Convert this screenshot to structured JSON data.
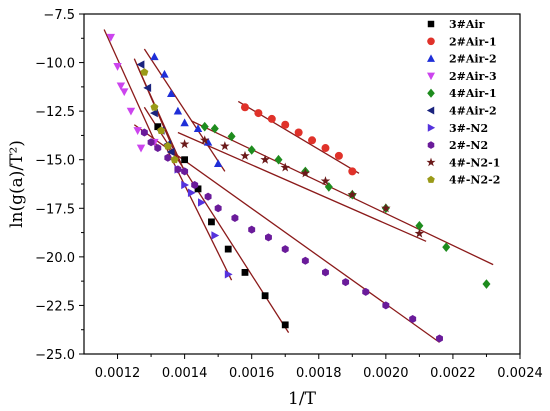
{
  "chart_data": {
    "type": "scatter",
    "title": "",
    "xlabel": "1/T",
    "ylabel": "ln(g(a)/T²)",
    "xlim": [
      0.0011,
      0.0024
    ],
    "ylim": [
      -25.0,
      -7.5
    ],
    "x_ticks": [
      {
        "value": 0.0012,
        "label": "0.0012"
      },
      {
        "value": 0.0014,
        "label": "0.0014"
      },
      {
        "value": 0.0016,
        "label": "0.0016"
      },
      {
        "value": 0.0018,
        "label": "0.0018"
      },
      {
        "value": 0.002,
        "label": "0.0020"
      },
      {
        "value": 0.0022,
        "label": "0.0022"
      },
      {
        "value": 0.0024,
        "label": "0.0024"
      }
    ],
    "y_ticks": [
      {
        "value": -7.5,
        "label": "−7.5"
      },
      {
        "value": -10.0,
        "label": "−10.0"
      },
      {
        "value": -12.5,
        "label": "−12.5"
      },
      {
        "value": -15.0,
        "label": "−15.0"
      },
      {
        "value": -17.5,
        "label": "−17.5"
      },
      {
        "value": -20.0,
        "label": "−20.0"
      },
      {
        "value": -22.5,
        "label": "−22.5"
      },
      {
        "value": -25.0,
        "label": "−25.0"
      }
    ],
    "grid": false,
    "legend_position": "top-right",
    "fit_line_color": "#8b1a1a",
    "series": [
      {
        "name": "3#Air",
        "marker": "square",
        "color": "#000000",
        "points": [
          [
            0.00132,
            -13.3
          ],
          [
            0.0014,
            -15.0
          ],
          [
            0.00144,
            -16.5
          ],
          [
            0.00148,
            -18.2
          ],
          [
            0.00153,
            -19.6
          ],
          [
            0.00158,
            -20.8
          ],
          [
            0.00164,
            -22.0
          ],
          [
            0.0017,
            -23.5
          ]
        ]
      },
      {
        "name": "2#Air-1",
        "marker": "circle",
        "color": "#e0322a",
        "points": [
          [
            0.00158,
            -12.3
          ],
          [
            0.00162,
            -12.6
          ],
          [
            0.00166,
            -12.9
          ],
          [
            0.0017,
            -13.2
          ],
          [
            0.00174,
            -13.6
          ],
          [
            0.00178,
            -14.0
          ],
          [
            0.00182,
            -14.4
          ],
          [
            0.00186,
            -14.8
          ],
          [
            0.0019,
            -15.6
          ]
        ]
      },
      {
        "name": "2#Air-2",
        "marker": "triangle-up",
        "color": "#1f2fd8",
        "points": [
          [
            0.00131,
            -9.7
          ],
          [
            0.00134,
            -10.6
          ],
          [
            0.00136,
            -11.6
          ],
          [
            0.00138,
            -12.5
          ],
          [
            0.0014,
            -13.1
          ],
          [
            0.00144,
            -13.4
          ],
          [
            0.00147,
            -14.1
          ],
          [
            0.0015,
            -15.2
          ]
        ]
      },
      {
        "name": "2#Air-3",
        "marker": "triangle-down",
        "color": "#cc44ee",
        "points": [
          [
            0.00118,
            -8.7
          ],
          [
            0.0012,
            -10.2
          ],
          [
            0.00121,
            -11.2
          ],
          [
            0.00122,
            -11.5
          ],
          [
            0.00124,
            -12.5
          ],
          [
            0.00126,
            -13.5
          ],
          [
            0.00127,
            -14.4
          ],
          [
            0.00131,
            -14.1
          ]
        ]
      },
      {
        "name": "4#Air-1",
        "marker": "diamond",
        "color": "#1e8c1e",
        "points": [
          [
            0.00146,
            -13.3
          ],
          [
            0.00149,
            -13.4
          ],
          [
            0.00154,
            -13.8
          ],
          [
            0.0016,
            -14.5
          ],
          [
            0.00168,
            -15.0
          ],
          [
            0.00176,
            -15.6
          ],
          [
            0.00183,
            -16.4
          ],
          [
            0.0019,
            -16.8
          ],
          [
            0.002,
            -17.5
          ],
          [
            0.0021,
            -18.4
          ],
          [
            0.00218,
            -19.5
          ],
          [
            0.0023,
            -21.4
          ]
        ]
      },
      {
        "name": "4#Air-2",
        "marker": "triangle-left",
        "color": "#1a237e",
        "points": [
          [
            0.00127,
            -10.1
          ],
          [
            0.00129,
            -11.3
          ],
          [
            0.00131,
            -12.6
          ],
          [
            0.00133,
            -13.5
          ],
          [
            0.00135,
            -14.2
          ],
          [
            0.00136,
            -14.6
          ]
        ]
      },
      {
        "name": "3#-N2",
        "marker": "triangle-right",
        "color": "#5533dd",
        "points": [
          [
            0.00138,
            -15.5
          ],
          [
            0.0014,
            -16.3
          ],
          [
            0.00142,
            -16.7
          ],
          [
            0.00145,
            -17.2
          ],
          [
            0.00149,
            -18.9
          ],
          [
            0.00153,
            -20.9
          ]
        ]
      },
      {
        "name": "2#-N2",
        "marker": "hexagon",
        "color": "#6a1b9a",
        "points": [
          [
            0.00128,
            -13.6
          ],
          [
            0.0013,
            -14.1
          ],
          [
            0.00132,
            -14.4
          ],
          [
            0.00135,
            -14.9
          ],
          [
            0.00138,
            -15.5
          ],
          [
            0.0014,
            -15.6
          ],
          [
            0.00143,
            -16.3
          ],
          [
            0.00147,
            -16.9
          ],
          [
            0.0015,
            -17.5
          ],
          [
            0.00155,
            -18.0
          ],
          [
            0.0016,
            -18.6
          ],
          [
            0.00165,
            -19.0
          ],
          [
            0.0017,
            -19.6
          ],
          [
            0.00176,
            -20.2
          ],
          [
            0.00182,
            -20.8
          ],
          [
            0.00188,
            -21.3
          ],
          [
            0.00194,
            -21.8
          ],
          [
            0.002,
            -22.5
          ],
          [
            0.00208,
            -23.2
          ],
          [
            0.00216,
            -24.2
          ]
        ]
      },
      {
        "name": "4#-N2-1",
        "marker": "star",
        "color": "#6b1a1a",
        "points": [
          [
            0.0014,
            -14.2
          ],
          [
            0.00146,
            -14.0
          ],
          [
            0.00152,
            -14.3
          ],
          [
            0.00158,
            -14.8
          ],
          [
            0.00164,
            -15.0
          ],
          [
            0.0017,
            -15.4
          ],
          [
            0.00176,
            -15.7
          ],
          [
            0.00182,
            -16.1
          ],
          [
            0.0019,
            -16.8
          ],
          [
            0.002,
            -17.5
          ],
          [
            0.0021,
            -18.8
          ]
        ]
      },
      {
        "name": "4#-N2-2",
        "marker": "pentagon",
        "color": "#9a9a18",
        "points": [
          [
            0.00128,
            -10.5
          ],
          [
            0.00131,
            -12.3
          ],
          [
            0.00133,
            -13.5
          ],
          [
            0.00135,
            -14.3
          ],
          [
            0.00137,
            -15.0
          ]
        ]
      }
    ],
    "fit_lines": [
      {
        "series": "3#Air",
        "x": [
          0.00128,
          0.00171
        ],
        "y": [
          -12.3,
          -23.9
        ]
      },
      {
        "series": "2#Air-1",
        "x": [
          0.00156,
          0.00192
        ],
        "y": [
          -12.0,
          -15.7
        ]
      },
      {
        "series": "2#Air-2",
        "x": [
          0.00128,
          0.00152
        ],
        "y": [
          -9.3,
          -15.6
        ]
      },
      {
        "series": "2#Air-3",
        "x": [
          0.00116,
          0.00132
        ],
        "y": [
          -8.3,
          -14.4
        ]
      },
      {
        "series": "4#Air-1",
        "x": [
          0.00142,
          0.00232
        ],
        "y": [
          -13.0,
          -20.4
        ]
      },
      {
        "series": "4#Air-2",
        "x": [
          0.00125,
          0.00138
        ],
        "y": [
          -9.8,
          -15.0
        ]
      },
      {
        "series": "3#-N2",
        "x": [
          0.00134,
          0.00154
        ],
        "y": [
          -14.2,
          -21.2
        ]
      },
      {
        "series": "2#-N2",
        "x": [
          0.00125,
          0.00216
        ],
        "y": [
          -13.2,
          -24.4
        ]
      },
      {
        "series": "4#-N2-1",
        "x": [
          0.00138,
          0.00212
        ],
        "y": [
          -13.6,
          -19.2
        ]
      },
      {
        "series": "4#-N2-2",
        "x": [
          0.00126,
          0.0014
        ],
        "y": [
          -10.2,
          -15.6
        ]
      }
    ]
  }
}
